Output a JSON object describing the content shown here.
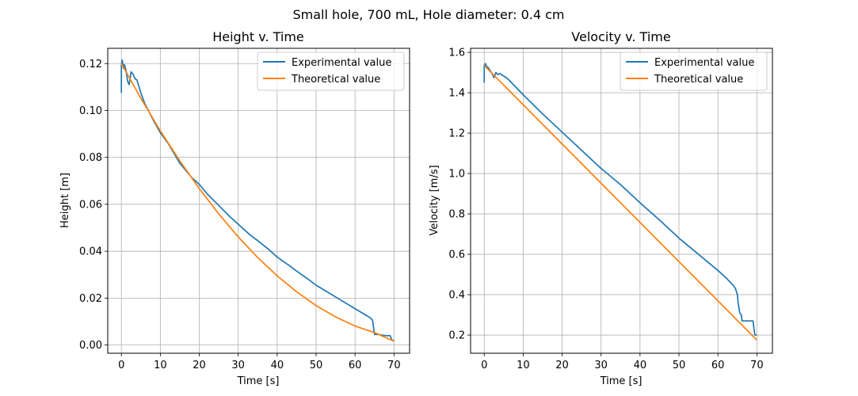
{
  "figure": {
    "suptitle": "Small hole, 700 mL, Hole diameter: 0.4 cm"
  },
  "colors": {
    "experimental": "#1f77b4",
    "theoretical": "#ff7f0e",
    "grid": "#b0b0b0",
    "axes": "#000000"
  },
  "chart_data": [
    {
      "type": "line",
      "title": "Height v. Time",
      "xlabel": "Time [s]",
      "ylabel": "Height [m]",
      "xlim": [
        -3.5,
        74
      ],
      "ylim": [
        -0.0035,
        0.1265
      ],
      "xticks": [
        0,
        10,
        20,
        30,
        40,
        50,
        60,
        70
      ],
      "yticks": [
        0.0,
        0.02,
        0.04,
        0.06,
        0.08,
        0.1,
        0.12
      ],
      "ytick_labels": [
        "0.00",
        "0.02",
        "0.04",
        "0.06",
        "0.08",
        "0.10",
        "0.12"
      ],
      "grid": true,
      "legend": "top-right",
      "series": [
        {
          "name": "Experimental value",
          "color": "#1f77b4",
          "x": [
            0,
            0,
            0.2,
            0.5,
            0.8,
            1.2,
            1.6,
            2.0,
            2.5,
            3.0,
            3.5,
            4,
            5,
            6,
            8,
            10,
            12,
            15,
            18,
            20,
            22,
            25,
            28,
            30,
            33,
            35,
            38,
            40,
            43,
            45,
            48,
            50,
            53,
            55,
            58,
            60,
            62,
            63,
            64,
            64.5,
            65,
            66,
            67,
            68,
            69,
            69.5,
            70
          ],
          "y": [
            0.1075,
            0.119,
            0.1215,
            0.118,
            0.1195,
            0.117,
            0.1125,
            0.111,
            0.1165,
            0.1155,
            0.1135,
            0.113,
            0.1075,
            0.103,
            0.0965,
            0.0905,
            0.086,
            0.0775,
            0.0715,
            0.0685,
            0.0645,
            0.0595,
            0.0545,
            0.0515,
            0.047,
            0.0445,
            0.0405,
            0.0375,
            0.034,
            0.0315,
            0.028,
            0.0255,
            0.0225,
            0.0205,
            0.0175,
            0.0155,
            0.0135,
            0.0125,
            0.0115,
            0.0105,
            0.0045,
            0.0045,
            0.0042,
            0.004,
            0.004,
            0.002,
            0.002
          ]
        },
        {
          "name": "Theoretical value",
          "color": "#ff7f0e",
          "x": [
            0,
            5,
            10,
            15,
            20,
            25,
            30,
            35,
            40,
            45,
            50,
            55,
            60,
            65,
            70
          ],
          "y": [
            0.12,
            0.1052,
            0.0913,
            0.0785,
            0.0667,
            0.0559,
            0.0461,
            0.0373,
            0.0295,
            0.0227,
            0.0168,
            0.012,
            0.0081,
            0.0053,
            0.0016
          ]
        }
      ]
    },
    {
      "type": "line",
      "title": "Velocity v. Time",
      "xlabel": "Time [s]",
      "ylabel": "Velocity [m/s]",
      "xlim": [
        -3.5,
        74
      ],
      "ylim": [
        0.11,
        1.62
      ],
      "xticks": [
        0,
        10,
        20,
        30,
        40,
        50,
        60,
        70
      ],
      "yticks": [
        0.2,
        0.4,
        0.6,
        0.8,
        1.0,
        1.2,
        1.4,
        1.6
      ],
      "ytick_labels": [
        "0.2",
        "0.4",
        "0.6",
        "0.8",
        "1.0",
        "1.2",
        "1.4",
        "1.6"
      ],
      "grid": true,
      "legend": "top-right",
      "series": [
        {
          "name": "Experimental value",
          "color": "#1f77b4",
          "x": [
            0,
            0,
            0.3,
            0.6,
            1.0,
            1.5,
            2.0,
            2.5,
            3.0,
            3.5,
            4,
            6,
            10,
            15,
            20,
            25,
            30,
            35,
            40,
            45,
            50,
            55,
            60,
            62,
            63,
            64,
            64.5,
            65,
            65.2,
            65.6,
            66,
            66.2,
            67,
            68,
            69,
            69.5,
            70
          ],
          "y": [
            1.45,
            1.535,
            1.545,
            1.53,
            1.525,
            1.51,
            1.495,
            1.475,
            1.5,
            1.49,
            1.495,
            1.47,
            1.39,
            1.295,
            1.205,
            1.115,
            1.025,
            0.945,
            0.855,
            0.77,
            0.68,
            0.6,
            0.52,
            0.485,
            0.465,
            0.445,
            0.43,
            0.4,
            0.36,
            0.31,
            0.3,
            0.27,
            0.27,
            0.27,
            0.27,
            0.2,
            0.2
          ]
        },
        {
          "name": "Theoretical value",
          "color": "#ff7f0e",
          "x": [
            0,
            70
          ],
          "y": [
            1.535,
            0.175
          ]
        }
      ]
    }
  ]
}
